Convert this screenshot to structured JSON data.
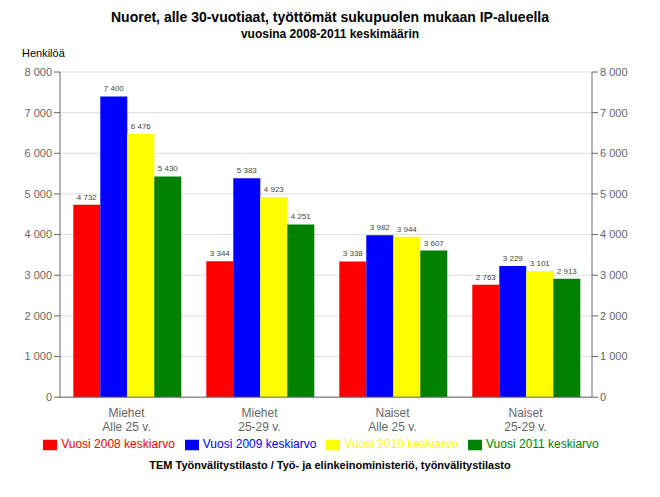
{
  "chart_data": {
    "type": "bar",
    "title": "Nuoret, alle 30-vuotiaat, työttömät sukupuolen mukaan IP-alueella",
    "subtitle": "vuosina 2008-2011 keskimäärin",
    "y_label": "Henkilöä",
    "annotations": [
      "TEM Työnvälitystilasto / Työ- ja elinkeinoministeriö, työnvälitystilasto"
    ],
    "categories": [
      "Miehet\nAlle 25 v.",
      "Miehet\n25-29 v.",
      "Naiset\nAlle 25 v.",
      "Naiset\n25-29 v."
    ],
    "series": [
      {
        "name": "Vuosi 2008 keskiarvo",
        "color": "#FF0000",
        "values": [
          4732,
          3344,
          3338,
          2763
        ],
        "value_labels": [
          "4 732",
          "3 344",
          "3 338",
          "2 763"
        ]
      },
      {
        "name": "Vuosi 2009 keskiarvo",
        "color": "#0000FF",
        "values": [
          7400,
          5383,
          3982,
          3229
        ],
        "value_labels": [
          "7 400",
          "5 383",
          "3 982",
          "3 229"
        ]
      },
      {
        "name": "Vuosi 2010 keskiarvo",
        "color": "#FFFF00",
        "values": [
          6476,
          4923,
          3944,
          3101
        ],
        "value_labels": [
          "6 476",
          "4 923",
          "3 944",
          "3 101"
        ]
      },
      {
        "name": "Vuosi 2011 keskiarvo",
        "color": "#008000",
        "values": [
          5430,
          4251,
          3607,
          2913
        ],
        "value_labels": [
          "5 430",
          "4 251",
          "3 607",
          "2 913"
        ]
      }
    ],
    "ylim": [
      0,
      8000
    ],
    "yticks": [
      0,
      {
        "value": 1000,
        "label": "1 000"
      },
      {
        "value": 2000,
        "label": "2 000"
      },
      {
        "value": 3000,
        "label": "3 000"
      },
      {
        "value": 4000,
        "label": "4 000"
      },
      {
        "value": 5000,
        "label": "5 000"
      },
      {
        "value": 6000,
        "label": "6 000"
      },
      {
        "value": 7000,
        "label": "7 000"
      },
      {
        "value": 8000,
        "label": "8 000"
      }
    ],
    "y2lim": [
      0,
      8000
    ],
    "y2ticks": [
      0,
      {
        "value": 1000,
        "label": "1 000"
      },
      {
        "value": 2000,
        "label": "2 000"
      },
      {
        "value": 3000,
        "label": "3 000"
      },
      {
        "value": 4000,
        "label": "4 000"
      },
      {
        "value": 5000,
        "label": "5 000"
      },
      {
        "value": 6000,
        "label": "6 000"
      },
      {
        "value": 7000,
        "label": "7 000"
      },
      {
        "value": 8000,
        "label": "8 000"
      }
    ],
    "grid": true,
    "legend": "bottom",
    "data_labels": true
  }
}
